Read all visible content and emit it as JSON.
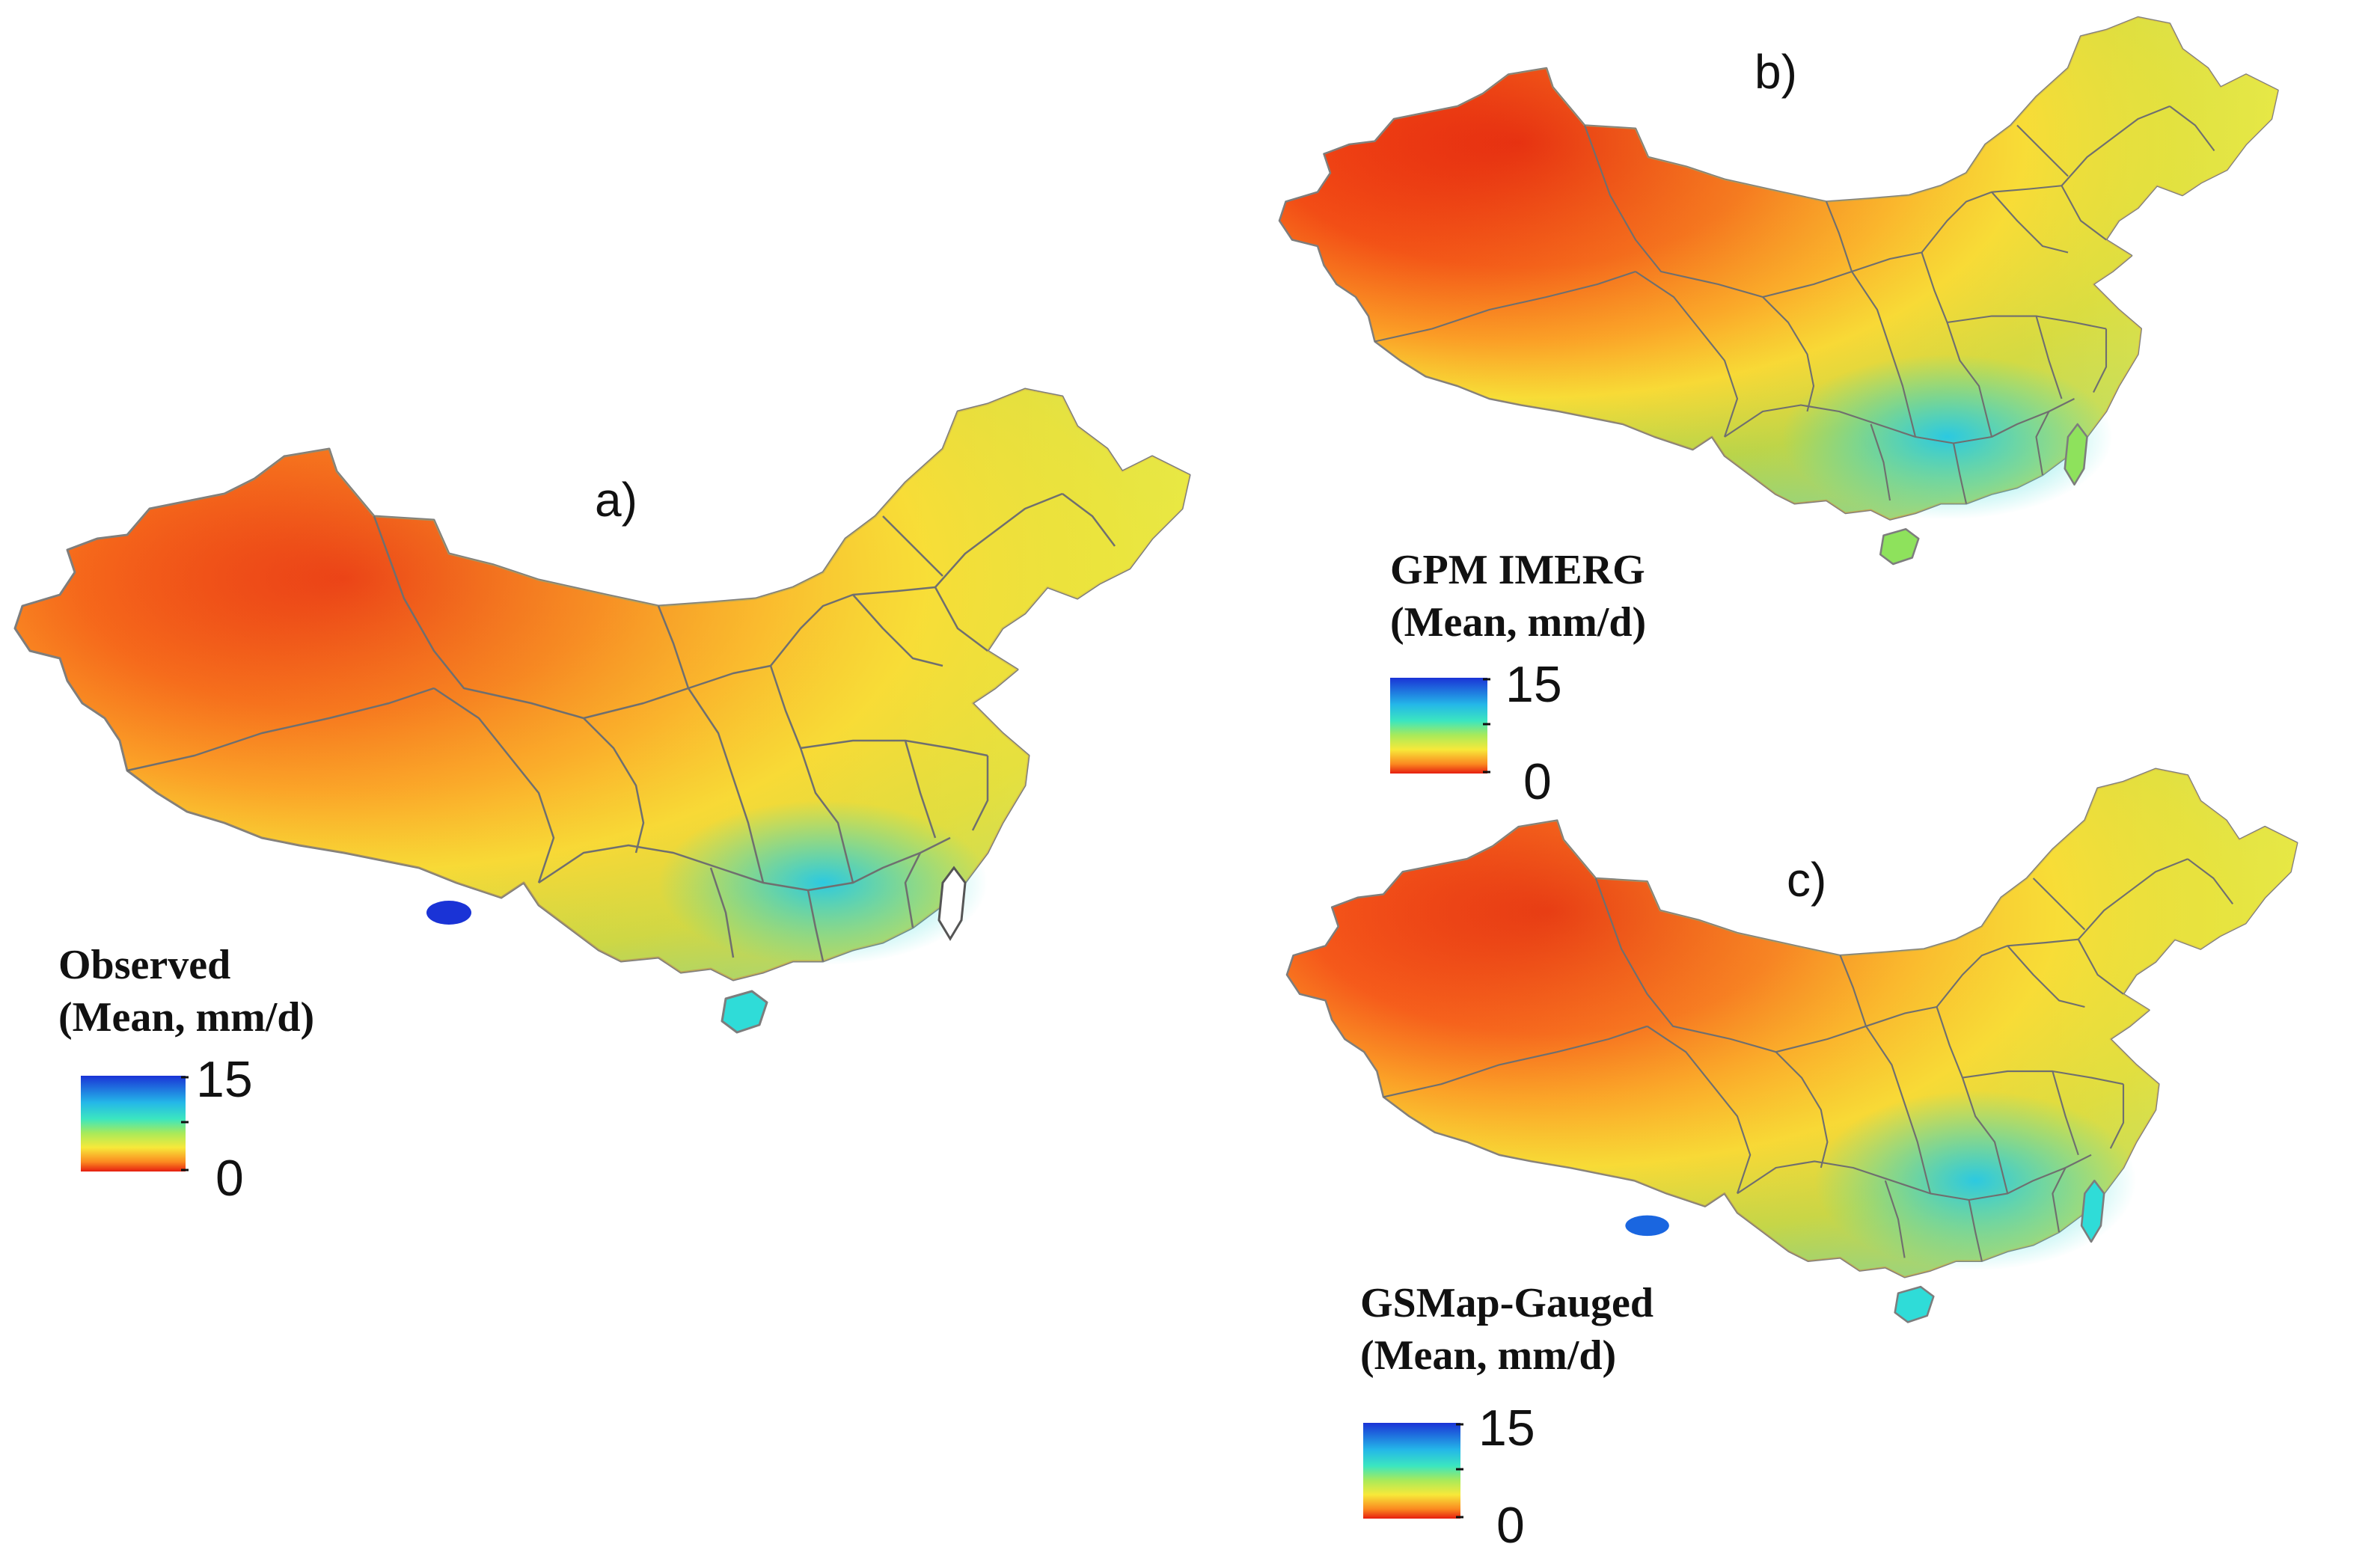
{
  "panels": [
    {
      "id": "a",
      "letter": "a)",
      "legend_title_line1": "Observed",
      "legend_title_line2": "(Mean, mm/d)",
      "scale_max": "15",
      "scale_min": "0"
    },
    {
      "id": "b",
      "letter": "b)",
      "legend_title_line1": "GPM IMERG",
      "legend_title_line2": "(Mean, mm/d)",
      "scale_max": "15",
      "scale_min": "0"
    },
    {
      "id": "c",
      "letter": "c)",
      "legend_title_line1": "GSMap-Gauged",
      "legend_title_line2": "(Mean, mm/d)",
      "scale_max": "15",
      "scale_min": "0"
    }
  ],
  "colors": {
    "dry_dark": "#e61e10",
    "dry": "#f5641a",
    "mid_orange": "#fba027",
    "mid_yellow": "#f7e93a",
    "wet_green": "#8ee25c",
    "wet_cyan": "#2fe0d4",
    "very_wet_blue": "#1a3fe0",
    "border": "#6f6f6f"
  }
}
